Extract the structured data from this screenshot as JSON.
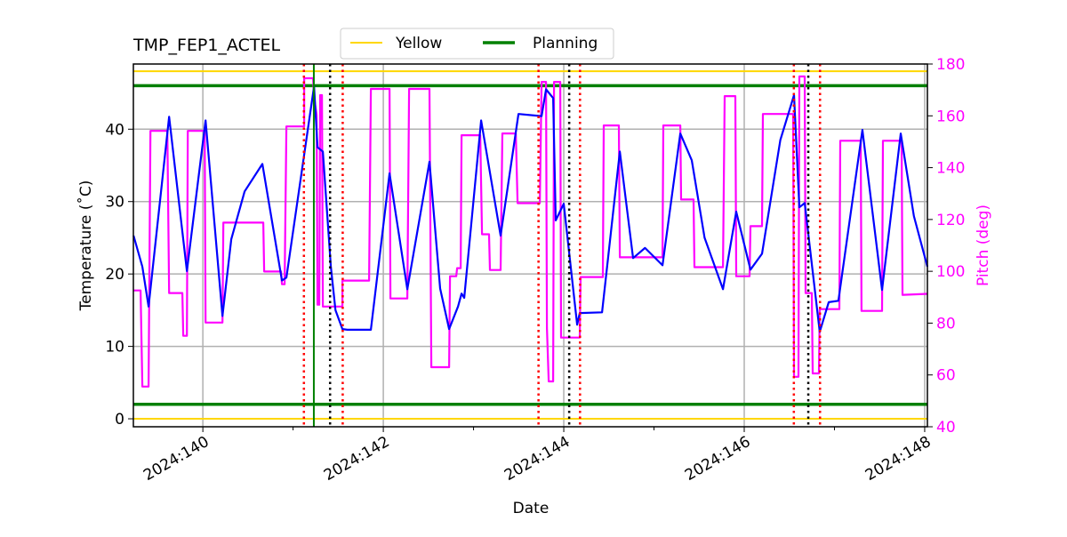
{
  "chart_data": {
    "type": "line",
    "title": "TMP_FEP1_ACTEL",
    "xlabel": "Date",
    "ylabel": "Temperature ($^\\circ$C)",
    "ylabel_display": "Temperature (˚C)",
    "y2label": "Pitch (deg)",
    "xlim": [
      139.23,
      148.03
    ],
    "ylim": [
      -1.1,
      49.0
    ],
    "y2lim": [
      40,
      180
    ],
    "xticks": [
      {
        "v": 140,
        "label": "2024:140"
      },
      {
        "v": 142,
        "label": "2024:142"
      },
      {
        "v": 144,
        "label": "2024:144"
      },
      {
        "v": 146,
        "label": "2024:146"
      },
      {
        "v": 148,
        "label": "2024:148"
      }
    ],
    "xminor": [
      141,
      143,
      145,
      147
    ],
    "yticks": [
      0,
      10,
      20,
      30,
      40
    ],
    "y2ticks": [
      40,
      60,
      80,
      100,
      120,
      140,
      160,
      180
    ],
    "grid": true,
    "legend": {
      "placement": "top-center outside",
      "entries": [
        {
          "name": "Yellow",
          "color": "#ffd700"
        },
        {
          "name": "Planning",
          "color": "#008000"
        }
      ]
    },
    "limits": {
      "yellow": [
        0,
        48
      ],
      "planning": [
        2,
        46
      ]
    },
    "vlines": {
      "red_dotted": [
        141.12,
        141.55,
        143.72,
        144.18,
        146.55,
        146.84
      ],
      "black_dotted": [
        141.41,
        144.06,
        146.71
      ],
      "green_solid": [
        141.23
      ]
    },
    "colors": {
      "temperature": "#0000ff",
      "pitch": "#ff00ff",
      "red": "#ff0000",
      "black": "#000000",
      "green": "#008000",
      "yellow": "#ffd700",
      "grid": "#b0b0b0"
    },
    "series": [
      {
        "axis": "left",
        "color": "#0000ff",
        "points": [
          [
            139.232,
            25.3
          ],
          [
            139.33,
            21.0
          ],
          [
            139.399,
            15.5
          ],
          [
            139.626,
            41.7
          ],
          [
            139.823,
            20.4
          ],
          [
            140.03,
            41.2
          ],
          [
            140.217,
            14.2
          ],
          [
            140.315,
            24.8
          ],
          [
            140.463,
            31.4
          ],
          [
            140.66,
            35.2
          ],
          [
            140.877,
            19.1
          ],
          [
            140.926,
            19.5
          ],
          [
            141.232,
            45.9
          ],
          [
            141.271,
            37.5
          ],
          [
            141.33,
            36.9
          ],
          [
            141.419,
            21.0
          ],
          [
            141.47,
            15.0
          ],
          [
            141.547,
            12.4
          ],
          [
            141.6,
            12.3
          ],
          [
            141.862,
            12.3
          ],
          [
            142.069,
            33.9
          ],
          [
            142.266,
            17.9
          ],
          [
            142.512,
            35.5
          ],
          [
            142.63,
            18.0
          ],
          [
            142.729,
            12.4
          ],
          [
            142.828,
            15.5
          ],
          [
            142.867,
            17.3
          ],
          [
            142.897,
            16.7
          ],
          [
            143.084,
            41.2
          ],
          [
            143.3,
            25.3
          ],
          [
            143.498,
            42.1
          ],
          [
            143.754,
            41.8
          ],
          [
            143.803,
            45.5
          ],
          [
            143.882,
            44.3
          ],
          [
            143.911,
            27.4
          ],
          [
            144.0,
            29.7
          ],
          [
            144.148,
            13.0
          ],
          [
            144.177,
            14.6
          ],
          [
            144.424,
            14.7
          ],
          [
            144.621,
            36.9
          ],
          [
            144.768,
            22.2
          ],
          [
            144.9,
            23.6
          ],
          [
            145.094,
            21.2
          ],
          [
            145.291,
            39.4
          ],
          [
            145.419,
            35.7
          ],
          [
            145.56,
            25.0
          ],
          [
            145.764,
            17.9
          ],
          [
            145.911,
            28.6
          ],
          [
            146.069,
            20.6
          ],
          [
            146.197,
            22.8
          ],
          [
            146.4,
            38.5
          ],
          [
            146.552,
            44.7
          ],
          [
            146.611,
            29.2
          ],
          [
            146.67,
            29.8
          ],
          [
            146.837,
            12.0
          ],
          [
            146.936,
            16.1
          ],
          [
            147.044,
            16.3
          ],
          [
            147.31,
            39.9
          ],
          [
            147.527,
            17.8
          ],
          [
            147.734,
            39.4
          ],
          [
            147.88,
            28.0
          ],
          [
            148.03,
            21.0
          ]
        ]
      },
      {
        "axis": "right",
        "color": "#ff00ff",
        "points": [
          [
            139.232,
            92.6
          ],
          [
            139.31,
            92.6
          ],
          [
            139.33,
            55.5
          ],
          [
            139.399,
            55.5
          ],
          [
            139.419,
            154.2
          ],
          [
            139.606,
            154.2
          ],
          [
            139.626,
            91.6
          ],
          [
            139.773,
            91.6
          ],
          [
            139.783,
            75.1
          ],
          [
            139.823,
            75.1
          ],
          [
            139.833,
            154.2
          ],
          [
            140.02,
            154.2
          ],
          [
            140.03,
            80.2
          ],
          [
            140.217,
            80.2
          ],
          [
            140.227,
            118.8
          ],
          [
            140.67,
            118.8
          ],
          [
            140.68,
            99.9
          ],
          [
            140.867,
            99.9
          ],
          [
            140.877,
            95.0
          ],
          [
            140.906,
            95.0
          ],
          [
            140.926,
            155.9
          ],
          [
            141.123,
            155.9
          ],
          [
            141.123,
            174.5
          ],
          [
            141.222,
            174.5
          ],
          [
            141.232,
            167.3
          ],
          [
            141.261,
            160.4
          ],
          [
            141.271,
            87.1
          ],
          [
            141.291,
            87.1
          ],
          [
            141.3,
            168.0
          ],
          [
            141.32,
            168.0
          ],
          [
            141.33,
            86.4
          ],
          [
            141.547,
            86.4
          ],
          [
            141.547,
            96.4
          ],
          [
            141.842,
            96.4
          ],
          [
            141.862,
            170.4
          ],
          [
            142.069,
            170.4
          ],
          [
            142.079,
            89.5
          ],
          [
            142.266,
            89.5
          ],
          [
            142.286,
            170.4
          ],
          [
            142.512,
            170.4
          ],
          [
            142.532,
            63.0
          ],
          [
            142.729,
            63.0
          ],
          [
            142.739,
            98.1
          ],
          [
            142.808,
            98.1
          ],
          [
            142.818,
            101.2
          ],
          [
            142.857,
            101.2
          ],
          [
            142.867,
            152.5
          ],
          [
            143.074,
            152.5
          ],
          [
            143.094,
            114.3
          ],
          [
            143.172,
            114.3
          ],
          [
            143.182,
            100.5
          ],
          [
            143.3,
            100.5
          ],
          [
            143.32,
            153.2
          ],
          [
            143.468,
            153.2
          ],
          [
            143.488,
            126.3
          ],
          [
            143.734,
            126.3
          ],
          [
            143.754,
            173.1
          ],
          [
            143.803,
            173.1
          ],
          [
            143.813,
            78.2
          ],
          [
            143.833,
            57.5
          ],
          [
            143.882,
            57.5
          ],
          [
            143.892,
            173.1
          ],
          [
            143.961,
            173.1
          ],
          [
            143.97,
            74.4
          ],
          [
            144.177,
            74.4
          ],
          [
            144.187,
            97.8
          ],
          [
            144.433,
            97.8
          ],
          [
            144.443,
            156.3
          ],
          [
            144.611,
            156.3
          ],
          [
            144.621,
            105.4
          ],
          [
            145.094,
            105.4
          ],
          [
            145.103,
            156.3
          ],
          [
            145.291,
            156.3
          ],
          [
            145.3,
            127.7
          ],
          [
            145.438,
            127.7
          ],
          [
            145.448,
            101.6
          ],
          [
            145.764,
            101.6
          ],
          [
            145.783,
            167.6
          ],
          [
            145.901,
            167.6
          ],
          [
            145.911,
            98.1
          ],
          [
            146.059,
            98.1
          ],
          [
            146.069,
            117.4
          ],
          [
            146.197,
            117.4
          ],
          [
            146.207,
            160.7
          ],
          [
            146.542,
            160.7
          ],
          [
            146.552,
            59.3
          ],
          [
            146.601,
            59.3
          ],
          [
            146.611,
            175.2
          ],
          [
            146.67,
            175.2
          ],
          [
            146.68,
            91.6
          ],
          [
            146.749,
            91.6
          ],
          [
            146.759,
            60.6
          ],
          [
            146.828,
            60.6
          ],
          [
            146.837,
            85.4
          ],
          [
            147.054,
            85.4
          ],
          [
            147.064,
            150.4
          ],
          [
            147.291,
            150.4
          ],
          [
            147.3,
            84.7
          ],
          [
            147.527,
            84.7
          ],
          [
            147.537,
            150.4
          ],
          [
            147.744,
            150.4
          ],
          [
            147.754,
            90.9
          ],
          [
            148.03,
            91.3
          ]
        ]
      }
    ]
  }
}
